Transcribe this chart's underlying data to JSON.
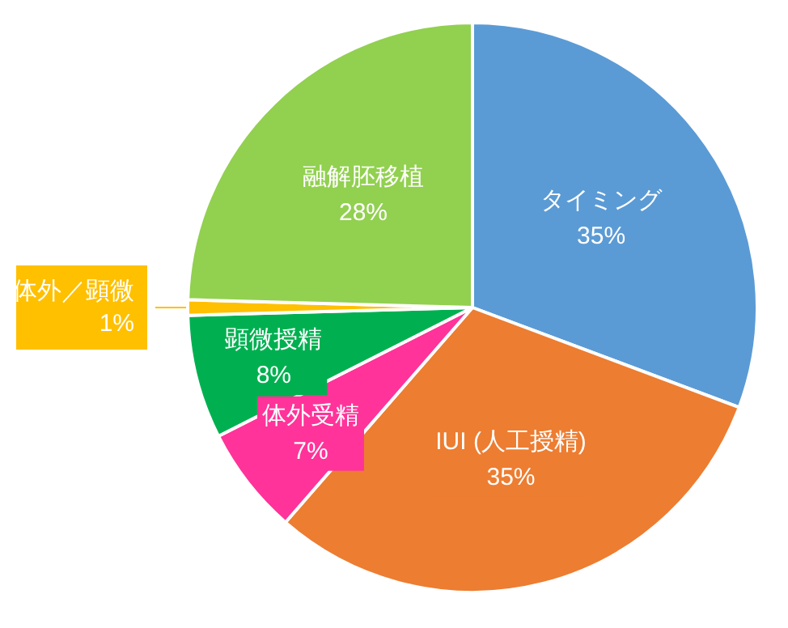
{
  "chart_data": {
    "type": "pie",
    "categories": [
      "タイミング",
      "IUI (人工授精)",
      "体外受精",
      "顕微授精",
      "体外／顕微",
      "融解胚移植"
    ],
    "values": [
      35,
      35,
      7,
      8,
      1,
      28
    ],
    "colors": [
      "#5b9bd5",
      "#ed7d31",
      "#ff3399",
      "#00b050",
      "#ffc000",
      "#92d050"
    ],
    "value_labels": [
      "35%",
      "35%",
      "7%",
      "8%",
      "1%",
      "28%"
    ]
  }
}
